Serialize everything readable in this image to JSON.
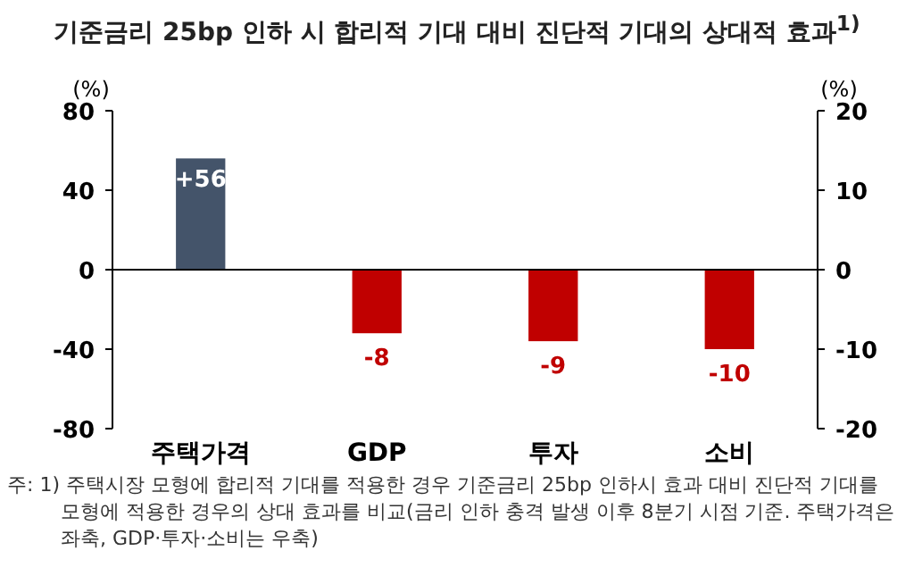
{
  "chart_data": {
    "type": "bar",
    "title": "기준금리 25bp 인하 시 합리적 기대 대비 진단적 기대의 상대적 효과$^{1)}$",
    "ylabel": "(%)",
    "y2label": "(%)",
    "categories": [
      "주택가격",
      "GDP",
      "투자",
      "소비"
    ],
    "series": [
      {
        "color": "#44546a",
        "values": [
          56,
          null,
          null,
          null
        ],
        "value_labels": [
          "+56",
          null,
          null,
          null
        ]
      },
      {
        "color": "#c00000",
        "axis": "y2",
        "values": [
          null,
          -8,
          -9,
          -10
        ],
        "value_labels": [
          null,
          "-8",
          "-9",
          "-10"
        ]
      }
    ],
    "ylim": [
      -80,
      80
    ],
    "yticks": [
      -80,
      -40,
      0,
      40,
      80
    ],
    "y2lim": [
      -20,
      20
    ],
    "y2ticks": [
      -20,
      -10,
      0,
      10,
      20
    ],
    "annotations": [
      "주: 1) 주택시장 모형에 합리적 기대를 적용한 경우 기준금리 25bp 인하시 효과 대비 진단적 기대를 모형에 적용한 경우의 상대 효과를 비교(금리 인하 충격 발생 이후 8분기 시점 기준. 주택가격은 좌축, GDP·투자·소비는 우축)"
    ]
  }
}
